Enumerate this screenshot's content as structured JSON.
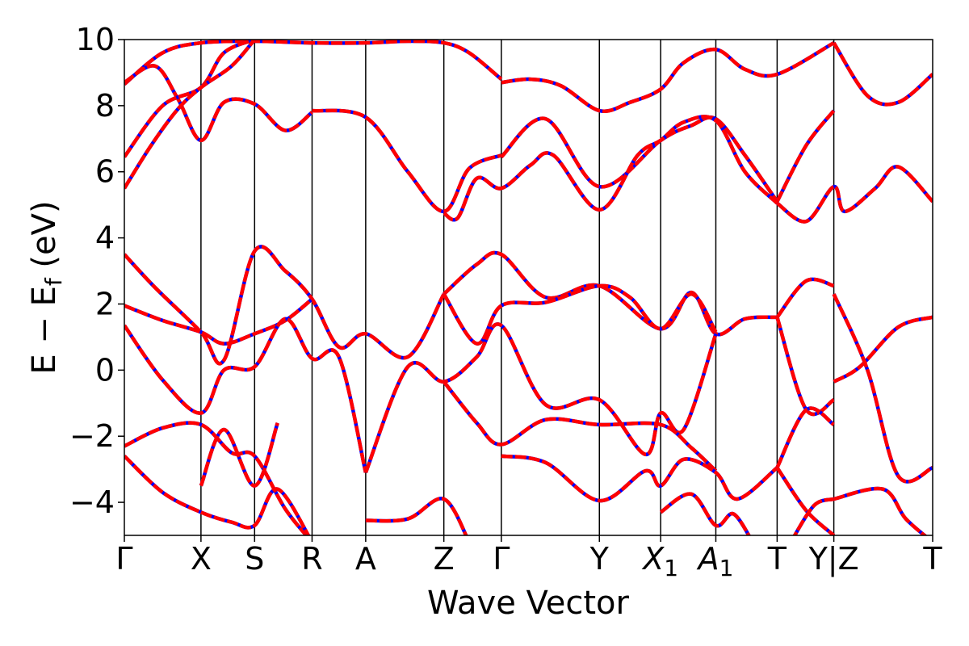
{
  "chart_data": {
    "type": "line",
    "title": "",
    "xlabel": "Wave Vector",
    "ylabel": "E − E",
    "ylabel_sub": "f",
    "ylabel_unit": " (eV)",
    "ylim": [
      -5,
      10
    ],
    "yticks": [
      -4,
      -2,
      0,
      2,
      4,
      6,
      8,
      10
    ],
    "ytick_labels": [
      "−4",
      "−2",
      "0",
      "2",
      "4",
      "6",
      "8",
      "10"
    ],
    "kpath": [
      0,
      1,
      1.7,
      2.45,
      3.15,
      4.17,
      4.92,
      6.2,
      7.0,
      7.72,
      8.52,
      9.26
    ],
    "xlim": [
      0,
      10.55
    ],
    "xticks": [
      {
        "k": 0,
        "label": "Γ",
        "italic": false
      },
      {
        "k": 1,
        "label": "X",
        "italic": false
      },
      {
        "k": 1.7,
        "label": "S",
        "italic": false
      },
      {
        "k": 2.45,
        "label": "R",
        "italic": false
      },
      {
        "k": 3.15,
        "label": "A",
        "italic": false
      },
      {
        "k": 4.17,
        "label": "Z",
        "italic": false
      },
      {
        "k": 4.92,
        "label": "Γ",
        "italic": false
      },
      {
        "k": 6.2,
        "label": "Y",
        "italic": false
      },
      {
        "k": 7.0,
        "label": "X",
        "sub": "1",
        "italic": true
      },
      {
        "k": 7.72,
        "label": "A",
        "sub": "1",
        "italic": true
      },
      {
        "k": 8.52,
        "label": "T",
        "italic": false
      },
      {
        "k": 9.26,
        "label": "Y|Z",
        "italic": false
      },
      {
        "k": 10.55,
        "label": "T",
        "italic": false
      }
    ],
    "series_style": {
      "base_color": "#0000ff",
      "dash_color": "#ff0000"
    },
    "series": [
      {
        "x": [
          0,
          0.5,
          1,
          1.7,
          2.45,
          3.15,
          3.7,
          4.17,
          4.5,
          4.92
        ],
        "values": [
          8.65,
          9.6,
          9.9,
          9.95,
          9.9,
          9.9,
          9.95,
          9.9,
          9.6,
          8.8
        ]
      },
      {
        "x": [
          4.92,
          5.3,
          5.7,
          6.2,
          6.6,
          7.0,
          7.3,
          7.72,
          8.1,
          8.52,
          9.26
        ],
        "values": [
          8.7,
          8.8,
          8.6,
          7.85,
          8.1,
          8.5,
          9.3,
          9.7,
          9.1,
          8.95,
          9.9
        ]
      },
      {
        "x": [
          9.26,
          9.7,
          10.1,
          10.55
        ],
        "values": [
          9.9,
          8.3,
          8.1,
          8.95
        ]
      },
      {
        "x": [
          0,
          0.4,
          0.7,
          1,
          1.3,
          1.7,
          2.1,
          2.45
        ],
        "values": [
          8.7,
          9.2,
          8.2,
          6.95,
          8.1,
          8.05,
          7.25,
          7.8
        ]
      },
      {
        "x": [
          2.45,
          3.15,
          3.7,
          4.17,
          4.5,
          4.92
        ],
        "values": [
          7.85,
          7.65,
          6.0,
          4.8,
          6.1,
          6.5
        ]
      },
      {
        "x": [
          4.92,
          5.5,
          6.2,
          7.0,
          7.4,
          7.72,
          8.1,
          8.52
        ],
        "values": [
          6.45,
          7.6,
          5.55,
          6.95,
          7.4,
          7.6,
          6.5,
          5.1
        ]
      },
      {
        "x": [
          8.52,
          8.9,
          9.26
        ],
        "values": [
          5.1,
          6.8,
          7.85
        ]
      },
      {
        "x": [
          0,
          0.5,
          1,
          1.3,
          1.7
        ],
        "values": [
          6.45,
          8.0,
          8.55,
          9.6,
          10.0
        ]
      },
      {
        "x": [
          0,
          0.35,
          0.7,
          1,
          1.4,
          1.7
        ],
        "values": [
          5.5,
          6.8,
          7.9,
          8.55,
          9.2,
          10.0
        ]
      },
      {
        "x": [
          4.17,
          4.35,
          4.6,
          4.92,
          5.3,
          5.6,
          6.2,
          6.7,
          7.0,
          7.3,
          7.72,
          8.1,
          8.52
        ],
        "values": [
          4.75,
          4.6,
          5.8,
          5.5,
          6.2,
          6.5,
          4.85,
          6.5,
          6.95,
          7.5,
          7.55,
          6.0,
          5.05
        ]
      },
      {
        "x": [
          8.52,
          8.9,
          9.26,
          9.4,
          9.8,
          10.1,
          10.55
        ],
        "values": [
          5.05,
          4.5,
          5.55,
          4.8,
          5.5,
          6.15,
          5.1
        ]
      },
      {
        "x": [
          0,
          0.4,
          1,
          1.3,
          1.7,
          2.1,
          2.45,
          2.8,
          3.15,
          3.7,
          4.17
        ],
        "values": [
          3.5,
          2.5,
          1.15,
          0.3,
          3.6,
          3.0,
          2.15,
          0.7,
          1.1,
          0.4,
          2.3
        ]
      },
      {
        "x": [
          4.17,
          4.6,
          4.92,
          5.5,
          6.2,
          7.0,
          7.4,
          7.72,
          8.1,
          8.52
        ],
        "values": [
          2.3,
          3.2,
          3.5,
          2.2,
          2.55,
          1.25,
          2.35,
          1.1,
          1.55,
          1.6
        ]
      },
      {
        "x": [
          8.52,
          8.9,
          9.26
        ],
        "values": [
          1.6,
          2.7,
          2.55
        ]
      },
      {
        "x": [
          0,
          0.5,
          1,
          1.3,
          1.7,
          2.1,
          2.45
        ],
        "values": [
          1.95,
          1.5,
          1.15,
          0.8,
          1.1,
          1.5,
          2.15
        ]
      },
      {
        "x": [
          4.17,
          4.6,
          4.92,
          5.5,
          6.2,
          6.6,
          7.0,
          7.4,
          7.72
        ],
        "values": [
          2.3,
          0.8,
          1.95,
          2.05,
          2.55,
          2.2,
          1.25,
          2.3,
          1.15
        ]
      },
      {
        "x": [
          0,
          0.5,
          1,
          1.3,
          1.7,
          2.1,
          2.45,
          2.8,
          3.15
        ],
        "values": [
          1.35,
          -0.3,
          -1.3,
          0.0,
          0.1,
          1.55,
          0.35,
          0.4,
          -3.1
        ]
      },
      {
        "x": [
          3.15,
          3.7,
          4.17,
          4.6,
          4.92,
          5.5,
          6.2,
          6.8,
          7.0,
          7.3,
          7.72
        ],
        "values": [
          -3.1,
          0.1,
          -0.35,
          0.4,
          1.35,
          -1.05,
          -0.9,
          -2.55,
          -1.3,
          -1.8,
          1.1
        ]
      },
      {
        "x": [
          4.17,
          4.6,
          4.92,
          5.5,
          6.2,
          7.0,
          7.4,
          7.72
        ],
        "values": [
          -0.35,
          -1.6,
          -2.25,
          -1.5,
          -1.65,
          -1.65,
          -2.35,
          -3.05
        ]
      },
      {
        "x": [
          9.26,
          9.6,
          10.1,
          10.55
        ],
        "values": [
          -0.35,
          0.1,
          1.3,
          1.6
        ]
      },
      {
        "x": [
          9.26,
          9.7,
          10.1,
          10.55
        ],
        "values": [
          2.3,
          0.0,
          -3.2,
          -2.95
        ]
      },
      {
        "x": [
          8.52,
          8.9,
          9.26
        ],
        "values": [
          1.6,
          -1.2,
          -0.9
        ]
      },
      {
        "x": [
          8.52,
          8.9,
          9.26
        ],
        "values": [
          -2.95,
          -1.2,
          -1.65
        ]
      },
      {
        "x": [
          0,
          0.5,
          1,
          1.4,
          1.7,
          2.1,
          2.45
        ],
        "values": [
          -2.3,
          -1.75,
          -1.65,
          -2.5,
          -2.6,
          -4.2,
          -5.2
        ]
      },
      {
        "x": [
          0,
          0.5,
          1,
          1.4,
          1.7,
          2.0,
          2.45
        ],
        "values": [
          -2.6,
          -3.7,
          -4.3,
          -4.6,
          -4.7,
          -3.6,
          -5.2
        ]
      },
      {
        "x": [
          1,
          1.3,
          1.7,
          2.0
        ],
        "values": [
          -3.5,
          -1.8,
          -3.5,
          -1.6
        ]
      },
      {
        "x": [
          4.92,
          5.5,
          6.2,
          6.8,
          7.0,
          7.3,
          7.72,
          8.0,
          8.52
        ],
        "values": [
          -2.6,
          -2.8,
          -3.95,
          -3.05,
          -3.5,
          -2.7,
          -3.1,
          -3.9,
          -2.95
        ]
      },
      {
        "x": [
          3.15,
          3.7,
          4.17,
          4.5
        ],
        "values": [
          -4.55,
          -4.5,
          -3.9,
          -5.2
        ]
      },
      {
        "x": [
          7.0,
          7.4,
          7.72,
          7.95,
          8.2
        ],
        "values": [
          -4.3,
          -3.75,
          -4.7,
          -4.35,
          -5.2
        ]
      },
      {
        "x": [
          8.52,
          8.9,
          9.26
        ],
        "values": [
          -2.95,
          -4.25,
          -5.0
        ]
      },
      {
        "x": [
          8.7,
          9.0,
          9.26
        ],
        "values": [
          -5.2,
          -4.1,
          -3.9
        ]
      },
      {
        "x": [
          9.26,
          9.9,
          10.2,
          10.55
        ],
        "values": [
          -3.9,
          -3.6,
          -4.5,
          -5.2
        ]
      }
    ]
  }
}
